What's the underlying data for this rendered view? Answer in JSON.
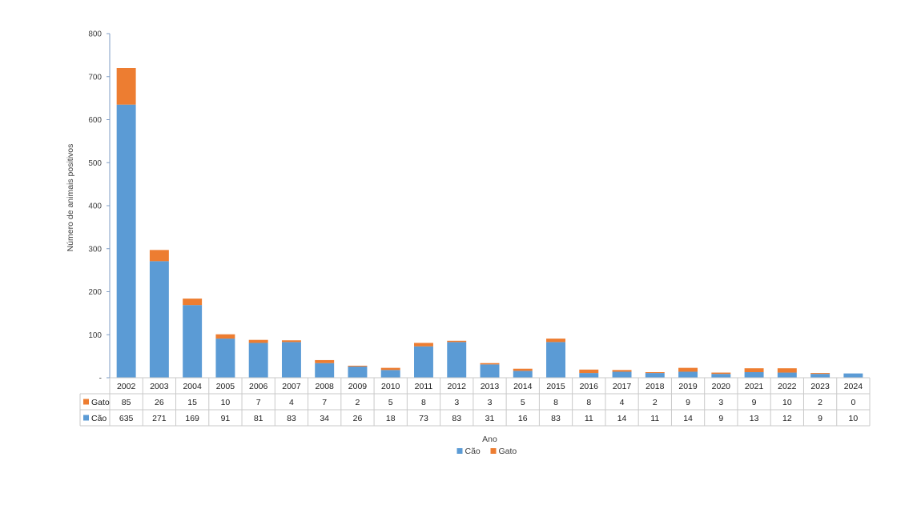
{
  "chart_data": {
    "type": "bar",
    "stacked": true,
    "title": "",
    "xlabel": "Ano",
    "ylabel": "Número de animais positivos",
    "ylim": [
      0,
      800
    ],
    "yticks": [
      "800",
      "700",
      "600",
      "500",
      "400",
      "300",
      "200",
      "100",
      "-"
    ],
    "grid": false,
    "legend_position": "bottom",
    "categories": [
      "2002",
      "2003",
      "2004",
      "2005",
      "2006",
      "2007",
      "2008",
      "2009",
      "2010",
      "2011",
      "2012",
      "2013",
      "2014",
      "2015",
      "2016",
      "2017",
      "2018",
      "2019",
      "2020",
      "2021",
      "2022",
      "2023",
      "2024"
    ],
    "series": [
      {
        "name": "Cão",
        "color": "#5B9BD5",
        "values": [
          635,
          271,
          169,
          91,
          81,
          83,
          34,
          26,
          18,
          73,
          83,
          31,
          16,
          83,
          11,
          14,
          11,
          14,
          9,
          13,
          12,
          9,
          10
        ]
      },
      {
        "name": "Gato",
        "color": "#ED7D31",
        "values": [
          85,
          26,
          15,
          10,
          7,
          4,
          7,
          2,
          5,
          8,
          3,
          3,
          5,
          8,
          8,
          4,
          2,
          9,
          3,
          9,
          10,
          2,
          0
        ]
      }
    ],
    "table_rows": [
      "Gato",
      "Cão"
    ]
  }
}
